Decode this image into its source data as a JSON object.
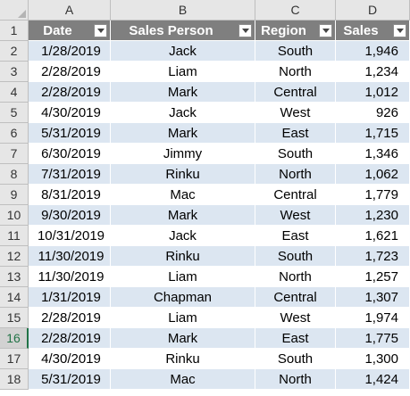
{
  "columns": [
    "A",
    "B",
    "C",
    "D"
  ],
  "header": {
    "row_number": "1",
    "date": "Date",
    "sales_person": "Sales Person",
    "region": "Region",
    "sales": "Sales"
  },
  "rows": [
    {
      "n": "2",
      "date": "1/28/2019",
      "person": "Jack",
      "region": "South",
      "sales": "1,946"
    },
    {
      "n": "3",
      "date": "2/28/2019",
      "person": "Liam",
      "region": "North",
      "sales": "1,234"
    },
    {
      "n": "4",
      "date": "2/28/2019",
      "person": "Mark",
      "region": "Central",
      "sales": "1,012"
    },
    {
      "n": "5",
      "date": "4/30/2019",
      "person": "Jack",
      "region": "West",
      "sales": "926"
    },
    {
      "n": "6",
      "date": "5/31/2019",
      "person": "Mark",
      "region": "East",
      "sales": "1,715"
    },
    {
      "n": "7",
      "date": "6/30/2019",
      "person": "Jimmy",
      "region": "South",
      "sales": "1,346"
    },
    {
      "n": "8",
      "date": "7/31/2019",
      "person": "Rinku",
      "region": "North",
      "sales": "1,062"
    },
    {
      "n": "9",
      "date": "8/31/2019",
      "person": "Mac",
      "region": "Central",
      "sales": "1,779"
    },
    {
      "n": "10",
      "date": "9/30/2019",
      "person": "Mark",
      "region": "West",
      "sales": "1,230"
    },
    {
      "n": "11",
      "date": "10/31/2019",
      "person": "Jack",
      "region": "East",
      "sales": "1,621"
    },
    {
      "n": "12",
      "date": "11/30/2019",
      "person": "Rinku",
      "region": "South",
      "sales": "1,723"
    },
    {
      "n": "13",
      "date": "11/30/2019",
      "person": "Liam",
      "region": "North",
      "sales": "1,257"
    },
    {
      "n": "14",
      "date": "1/31/2019",
      "person": "Chapman",
      "region": "Central",
      "sales": "1,307"
    },
    {
      "n": "15",
      "date": "2/28/2019",
      "person": "Liam",
      "region": "West",
      "sales": "1,974"
    },
    {
      "n": "16",
      "date": "2/28/2019",
      "person": "Mark",
      "region": "East",
      "sales": "1,775"
    },
    {
      "n": "17",
      "date": "4/30/2019",
      "person": "Rinku",
      "region": "South",
      "sales": "1,300"
    },
    {
      "n": "18",
      "date": "5/31/2019",
      "person": "Mac",
      "region": "North",
      "sales": "1,424"
    }
  ],
  "selected_row": "16",
  "colors": {
    "header_fill": "#7f7f7f",
    "band_fill": "#dce6f1",
    "selection": "#217346"
  }
}
